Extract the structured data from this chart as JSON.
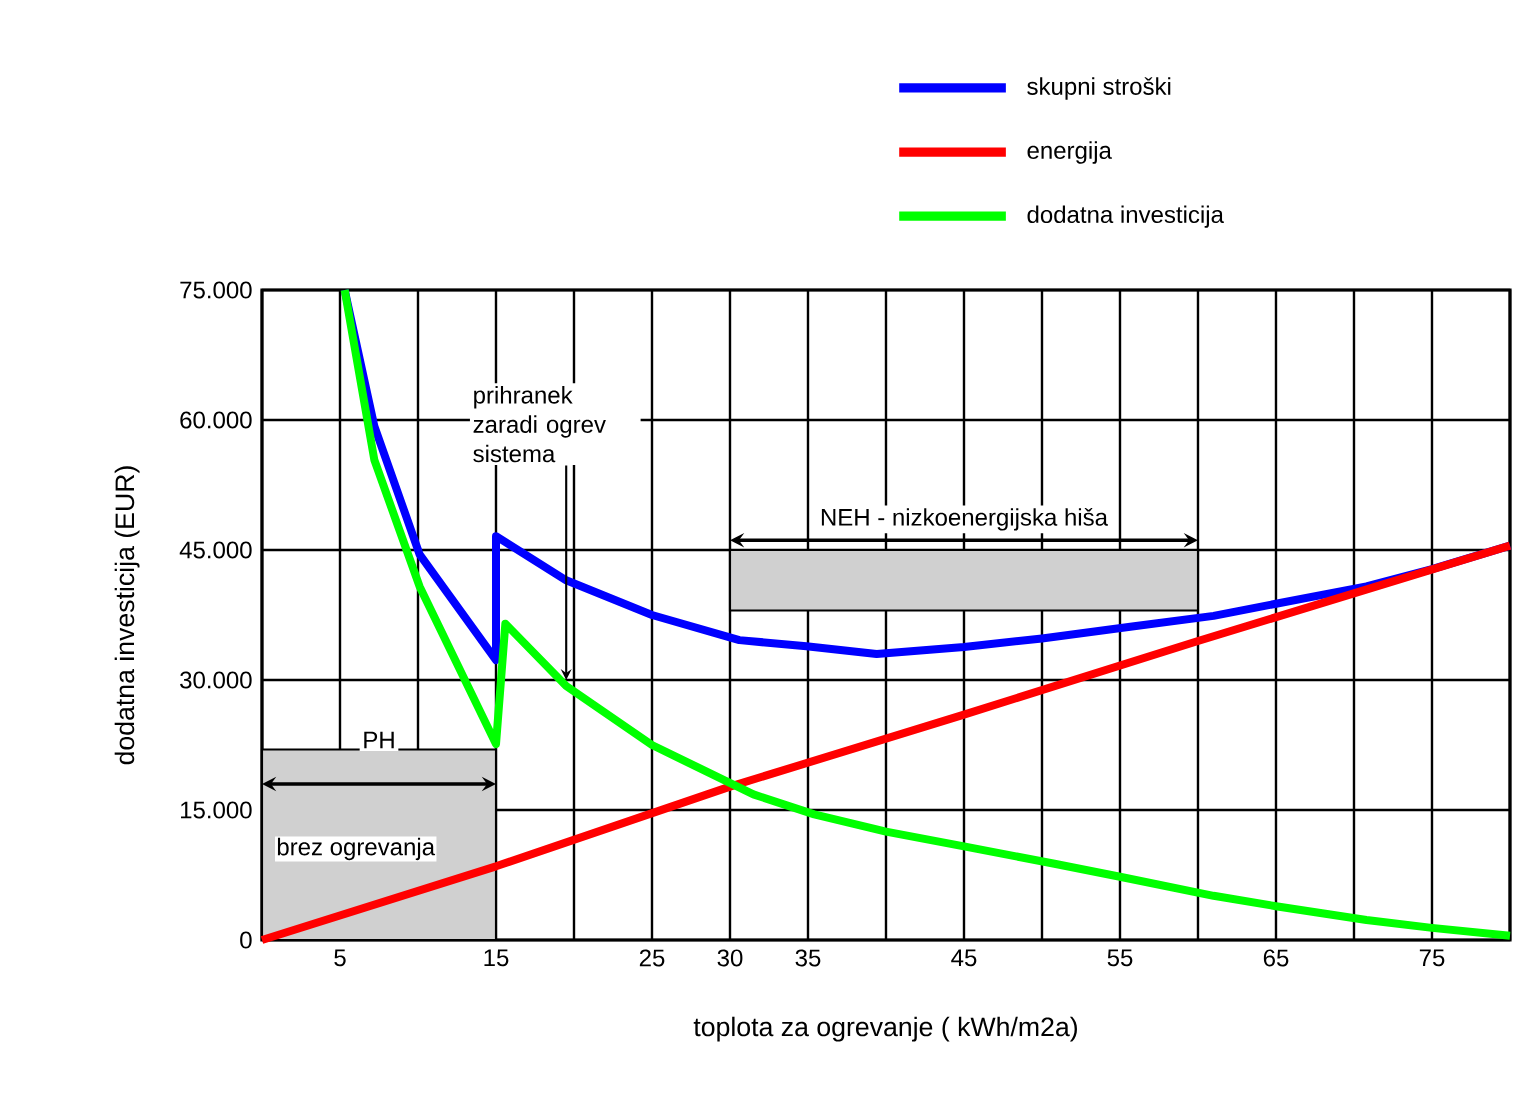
{
  "chart_data": {
    "type": "line",
    "xlabel": "toplota za ogrevanje ( kWh/m2a)",
    "ylabel": "dodatna investicija (EUR)",
    "xlim": [
      0,
      80
    ],
    "ylim": [
      0,
      75000
    ],
    "xticks": [
      {
        "value": 0,
        "label": null
      },
      5,
      {
        "value": 10,
        "label": null
      },
      15,
      {
        "value": 20,
        "label": null
      },
      25,
      30,
      35,
      {
        "value": 40,
        "label": null
      },
      45,
      {
        "value": 50,
        "label": null
      },
      55,
      {
        "value": 60,
        "label": null
      },
      65,
      {
        "value": 70,
        "label": null
      },
      75,
      {
        "value": 80,
        "label": null
      }
    ],
    "yticks": [
      0,
      {
        "value": 15000,
        "label": "15.000"
      },
      {
        "value": 30000,
        "label": "30.000"
      },
      {
        "value": 45000,
        "label": "45.000"
      },
      {
        "value": 60000,
        "label": "60.000"
      },
      {
        "value": 75000,
        "label": "75.000"
      }
    ],
    "grid": true,
    "legend": "top right",
    "marker": "none",
    "line_style": "solid",
    "series": [
      {
        "name": "skupni stroški",
        "color": "#0000ff",
        "x": [
          5.3,
          7.2,
          10.1,
          15,
          15,
          19.5,
          25,
          30.6,
          34.9,
          39.4,
          45,
          50,
          55.9,
          61,
          65,
          70.8,
          75,
          80
        ],
        "values": [
          75000,
          59300,
          44500,
          32300,
          46600,
          41500,
          37500,
          34600,
          33900,
          33000,
          33800,
          34800,
          36200,
          37400,
          38800,
          40800,
          42800,
          45500
        ]
      },
      {
        "name": "energija",
        "color": "#ff0000",
        "x": [
          0,
          15,
          30,
          45,
          60,
          80
        ],
        "values": [
          0,
          8500,
          17700,
          26000,
          34500,
          45500
        ]
      },
      {
        "name": "dodatna investicija",
        "color": "#00ff00",
        "x": [
          5.3,
          7.2,
          10.1,
          15,
          15.6,
          19.5,
          25,
          31.5,
          35.4,
          40,
          45,
          50.8,
          55,
          61,
          65,
          70.8,
          75,
          80
        ],
        "values": [
          75000,
          55400,
          40800,
          22600,
          36500,
          29300,
          22500,
          16800,
          14500,
          12500,
          10800,
          8800,
          7300,
          5100,
          3900,
          2300,
          1400,
          500
        ]
      }
    ],
    "bands": [
      {
        "axis": "x",
        "from": 0,
        "to": 15,
        "label": "PH",
        "color": "#d0d0d0"
      },
      {
        "axis": "x",
        "from": 30,
        "to": 60,
        "label": "NEH - nizkoenergijska hiša",
        "color": "#d0d0d0"
      }
    ],
    "annotations": [
      {
        "text": "prihranek zaradi ogrev sistema",
        "x": 19.5,
        "y": 30000
      },
      "brez ogrevanja"
    ]
  }
}
